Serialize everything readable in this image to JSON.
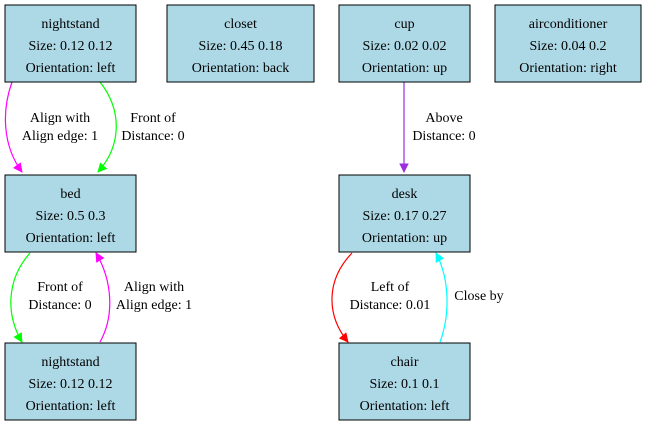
{
  "nodes": {
    "nightstand_top": {
      "name": "nightstand",
      "size": "Size: 0.12 0.12",
      "orientation": "Orientation: left"
    },
    "closet": {
      "name": "closet",
      "size": "Size: 0.45 0.18",
      "orientation": "Orientation: back"
    },
    "cup": {
      "name": "cup",
      "size": "Size: 0.02 0.02",
      "orientation": "Orientation: up"
    },
    "airconditioner": {
      "name": "airconditioner",
      "size": "Size: 0.04 0.2",
      "orientation": "Orientation: right"
    },
    "bed": {
      "name": "bed",
      "size": "Size: 0.5 0.3",
      "orientation": "Orientation: left"
    },
    "desk": {
      "name": "desk",
      "size": "Size: 0.17 0.27",
      "orientation": "Orientation: up"
    },
    "nightstand_bottom": {
      "name": "nightstand",
      "size": "Size: 0.12 0.12",
      "orientation": "Orientation: left"
    },
    "chair": {
      "name": "chair",
      "size": "Size: 0.1 0.1",
      "orientation": "Orientation: left"
    }
  },
  "edges": {
    "ns_bed_align": {
      "line1": "Align with",
      "line2": "Align edge: 1",
      "color": "#ff00ff"
    },
    "ns_bed_front": {
      "line1": "Front of",
      "line2": "Distance: 0",
      "color": "#00ff00"
    },
    "cup_desk_above": {
      "line1": "Above",
      "line2": "Distance: 0",
      "color": "#9a2ee0"
    },
    "bed_ns_front": {
      "line1": "Front of",
      "line2": "Distance: 0",
      "color": "#00ff00"
    },
    "ns_bed_align2": {
      "line1": "Align with",
      "line2": "Align edge: 1",
      "color": "#ff00ff"
    },
    "desk_chair_left": {
      "line1": "Left of",
      "line2": "Distance: 0.01",
      "color": "#ff0000"
    },
    "chair_desk_close": {
      "line1": "Close by",
      "line2": "",
      "color": "#00ffff"
    }
  }
}
